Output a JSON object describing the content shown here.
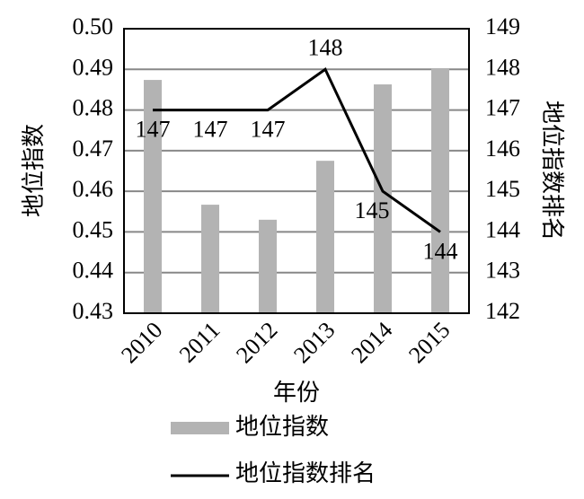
{
  "chart_data": {
    "type": "bar_line",
    "categories": [
      "2010",
      "2011",
      "2012",
      "2013",
      "2014",
      "2015"
    ],
    "series": [
      {
        "name": "地位指数",
        "color": "#b3b3b3",
        "type": "bar",
        "values": [
          0.4874,
          0.4567,
          0.453,
          0.4675,
          0.4863,
          0.4903
        ]
      },
      {
        "name": "地位指数排名",
        "color": "#000000",
        "type": "line",
        "axis": "y2",
        "values": [
          147,
          147,
          147,
          148,
          145,
          144
        ]
      }
    ],
    "xlabel": "年份",
    "ylabel": "地位指数",
    "y2label": "地位指数排名",
    "ylim": [
      0.43,
      0.5
    ],
    "yticks": [
      0.43,
      0.44,
      0.45,
      0.46,
      0.47,
      0.48,
      0.49,
      {
        "value": 0.5,
        "label": "0.50"
      }
    ],
    "y2lim": [
      142,
      149
    ],
    "y2ticks": [
      142,
      143,
      144,
      145,
      146,
      147,
      148,
      149
    ],
    "grid": true,
    "legend": "bottom"
  }
}
